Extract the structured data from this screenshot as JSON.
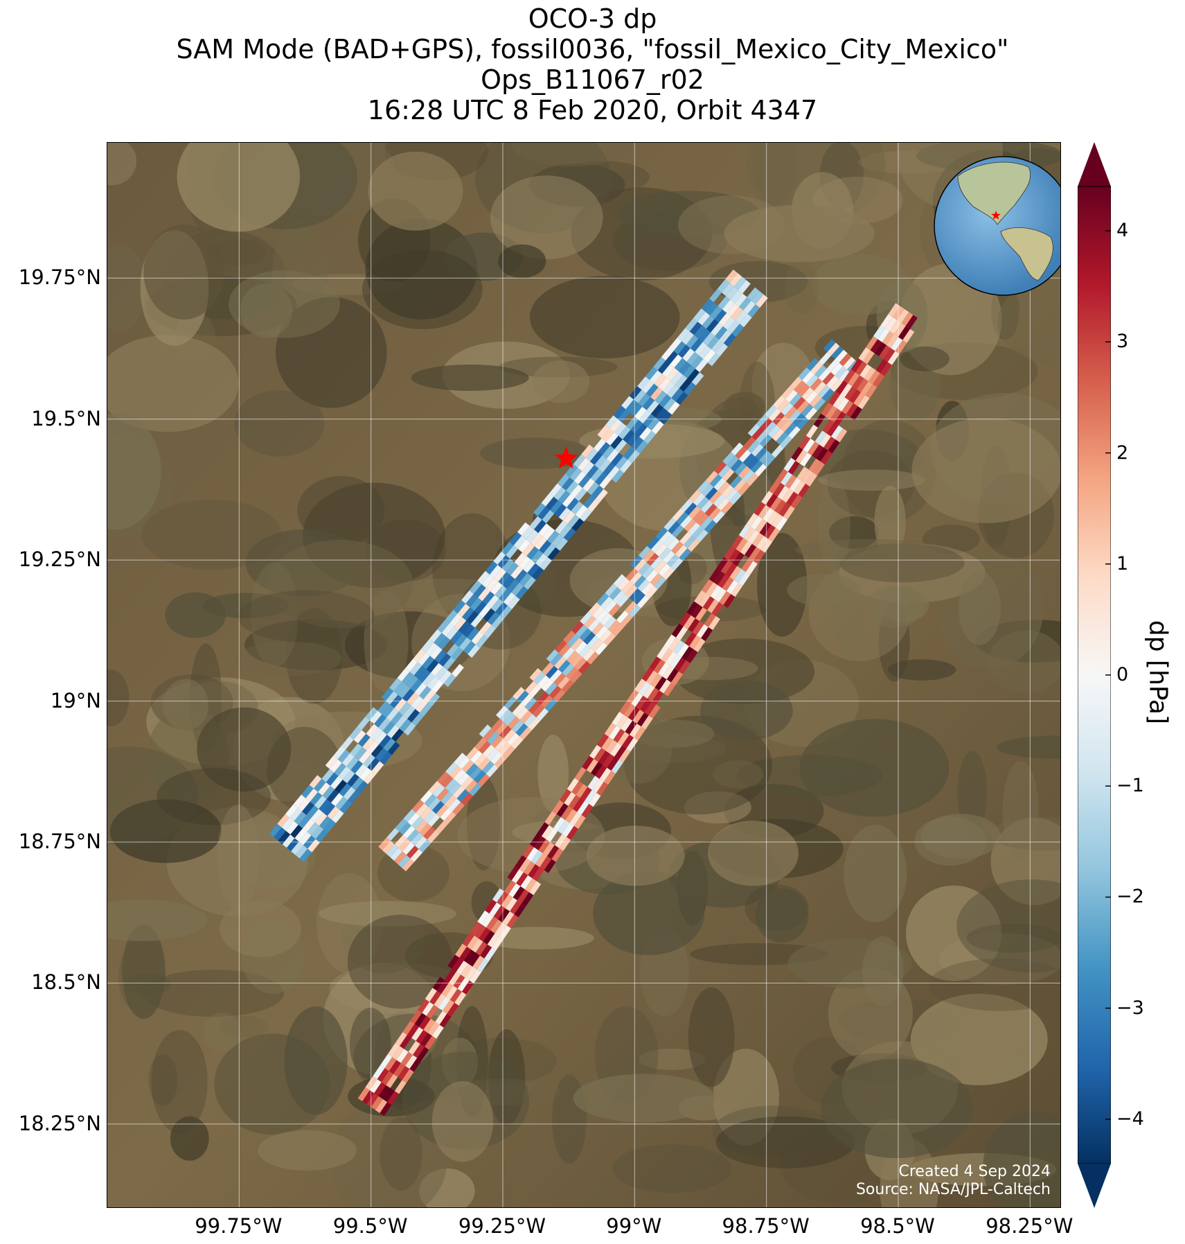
{
  "title": {
    "line1": "OCO-3 dp",
    "line2": "SAM Mode (BAD+GPS), fossil0036, \"fossil_Mexico_City_Mexico\"",
    "line3": "Ops_B11067_r02",
    "line4": "16:28 UTC 8 Feb 2020, Orbit 4347"
  },
  "map": {
    "lat_range": [
      18.1,
      19.99
    ],
    "lon_range": [
      -100.0,
      -98.19
    ],
    "lat_ticks": [
      "19.75°N",
      "19.5°N",
      "19.25°N",
      "19°N",
      "18.75°N",
      "18.5°N",
      "18.25°N"
    ],
    "lon_ticks": [
      "99.75°W",
      "99.5°W",
      "99.25°W",
      "99°W",
      "98.75°W",
      "98.5°W",
      "98.25°W"
    ],
    "target_marker": {
      "name": "fossil_Mexico_City_Mexico",
      "lon": -99.13,
      "lat": 19.43,
      "color": "#ff0000",
      "icon": "star-icon"
    },
    "inset_globe": {
      "icon": "globe-icon",
      "marker_color": "#ff0000"
    },
    "basemap": "satellite imagery, brown/green terrain"
  },
  "colorbar": {
    "label": "dp [hPa]",
    "range": [
      -4.4,
      4.4
    ],
    "ticks": [
      "4",
      "3",
      "2",
      "1",
      "0",
      "−1",
      "−2",
      "−3",
      "−4"
    ],
    "extend": "both",
    "colormap": [
      "#67001f",
      "#b2182b",
      "#d6604d",
      "#f4a582",
      "#fddbc7",
      "#f7f7f7",
      "#d1e5f0",
      "#92c5de",
      "#4393c3",
      "#2166ac",
      "#053061"
    ]
  },
  "credit": {
    "line1": "Created 4 Sep 2024",
    "line2": "Source: NASA/JPL-Caltech"
  }
}
